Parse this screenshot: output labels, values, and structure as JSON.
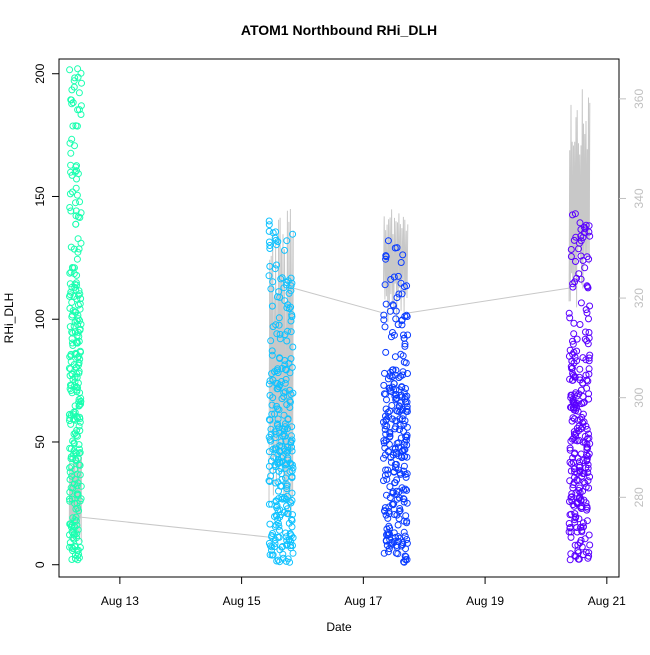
{
  "chart_data": {
    "type": "scatter",
    "title": "ATOM1 Northbound RHi_DLH",
    "xlabel": "Date",
    "ylabel": "RHi_DLH",
    "x_ticks": [
      "Aug 13",
      "Aug 15",
      "Aug 17",
      "Aug 19",
      "Aug 21"
    ],
    "x_tick_days": [
      13,
      15,
      17,
      19,
      21
    ],
    "xlim": [
      12.0,
      21.2
    ],
    "y_ticks": [
      0,
      50,
      100,
      150,
      200
    ],
    "ylim": [
      -5,
      206
    ],
    "y2_ticks": [
      280,
      300,
      320,
      340,
      360
    ],
    "y2lim": [
      264,
      368
    ],
    "series": [
      {
        "color": "#1AFFB0",
        "x_start": 12.17,
        "x_end": 12.37,
        "y_min": 2,
        "y_max": 202
      },
      {
        "color": "#0FC2FF",
        "x_start": 15.45,
        "x_end": 15.85,
        "y_min": 1,
        "y_max": 140
      },
      {
        "color": "#0A3CFF",
        "x_start": 17.33,
        "x_end": 17.73,
        "y_min": 1,
        "y_max": 132
      },
      {
        "color": "#5A00FF",
        "x_start": 20.38,
        "x_end": 20.72,
        "y_min": 2,
        "y_max": 143
      }
    ],
    "secondary_series": {
      "color": "#c8c8c8",
      "segments": [
        {
          "x_start": 12.17,
          "x_end": 12.37,
          "y_min": 270,
          "y_max": 290
        },
        {
          "x_start": 15.45,
          "x_end": 15.85,
          "y_min": 270,
          "y_max": 338
        },
        {
          "x_start": 17.33,
          "x_end": 17.73,
          "y_min": 315,
          "y_max": 340
        },
        {
          "x_start": 20.38,
          "x_end": 20.72,
          "y_min": 318,
          "y_max": 362
        }
      ],
      "connectors": [
        {
          "x": [
            12.37,
            15.45
          ],
          "y": [
            276,
            272
          ]
        },
        {
          "x": [
            15.85,
            17.33
          ],
          "y": [
            322,
            317
          ]
        },
        {
          "x": [
            17.73,
            20.38
          ],
          "y": [
            317,
            322
          ]
        }
      ]
    }
  }
}
